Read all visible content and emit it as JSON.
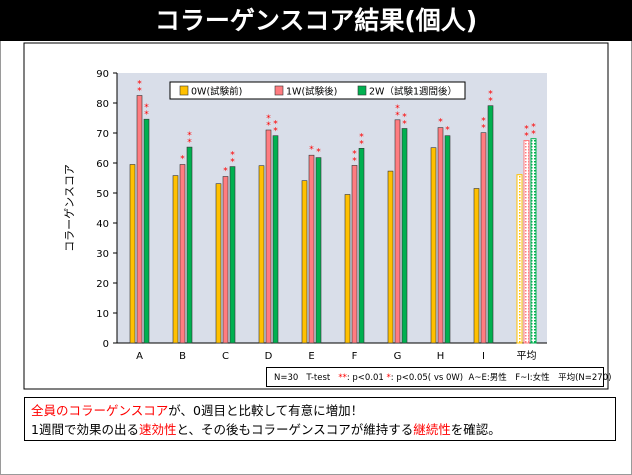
{
  "page": {
    "title": "コラーゲンスコア結果(個人)"
  },
  "chart_data": {
    "type": "bar",
    "categories": [
      "A",
      "B",
      "C",
      "D",
      "E",
      "F",
      "G",
      "H",
      "I",
      "平均"
    ],
    "ylabel": "コラーゲンスコア",
    "ylim": [
      0,
      90
    ],
    "yticks": [
      0,
      10,
      20,
      30,
      40,
      50,
      60,
      70,
      80,
      90
    ],
    "grid": false,
    "legend_position": "top",
    "series": [
      {
        "name": "0W(試験前)",
        "color": "#ffc000",
        "values": [
          59.5,
          55.8,
          53.1,
          59.1,
          54.1,
          49.5,
          57.3,
          65.1,
          51.5,
          56.1
        ]
      },
      {
        "name": "1W(試験後)",
        "color": "#ff7c80",
        "values": [
          82.5,
          59.5,
          55.5,
          71.0,
          62.6,
          59.2,
          74.4,
          71.8,
          70.1,
          67.5
        ]
      },
      {
        "name": "2W（試験1週間後）",
        "color": "#00b050",
        "values": [
          74.6,
          65.3,
          58.8,
          69.1,
          61.8,
          64.9,
          71.5,
          69.1,
          79.1,
          68.1
        ]
      }
    ],
    "significance": {
      "1W(試験後)": [
        "**",
        "*",
        "*",
        "**",
        "*",
        "**",
        "**",
        "*",
        "**",
        "**"
      ],
      "2W（試験1週間後）": [
        "**",
        "**",
        "**",
        "**",
        "*",
        "**",
        "**",
        "*",
        "**",
        "**"
      ]
    }
  },
  "stats_note": {
    "n": "N=30",
    "test": "T-test",
    "mark_double": "**",
    "p_double": ": p<0.01",
    "mark_single": "*",
    "p_single": ": p<0.05( vs 0W)",
    "subjects": "A~E:男性　F~I:女性　平均(N=270)"
  },
  "conclusion": {
    "line1_red": "全員のコラーゲンスコア",
    "line1_rest": "が、0週目と比較して有意に増加！",
    "line2_a": "1週間で効果の出る",
    "line2_red1": "速効性",
    "line2_b": "と、その後もコラーゲンスコアが維持する",
    "line2_red2": "継続性",
    "line2_c": "を確認。"
  }
}
